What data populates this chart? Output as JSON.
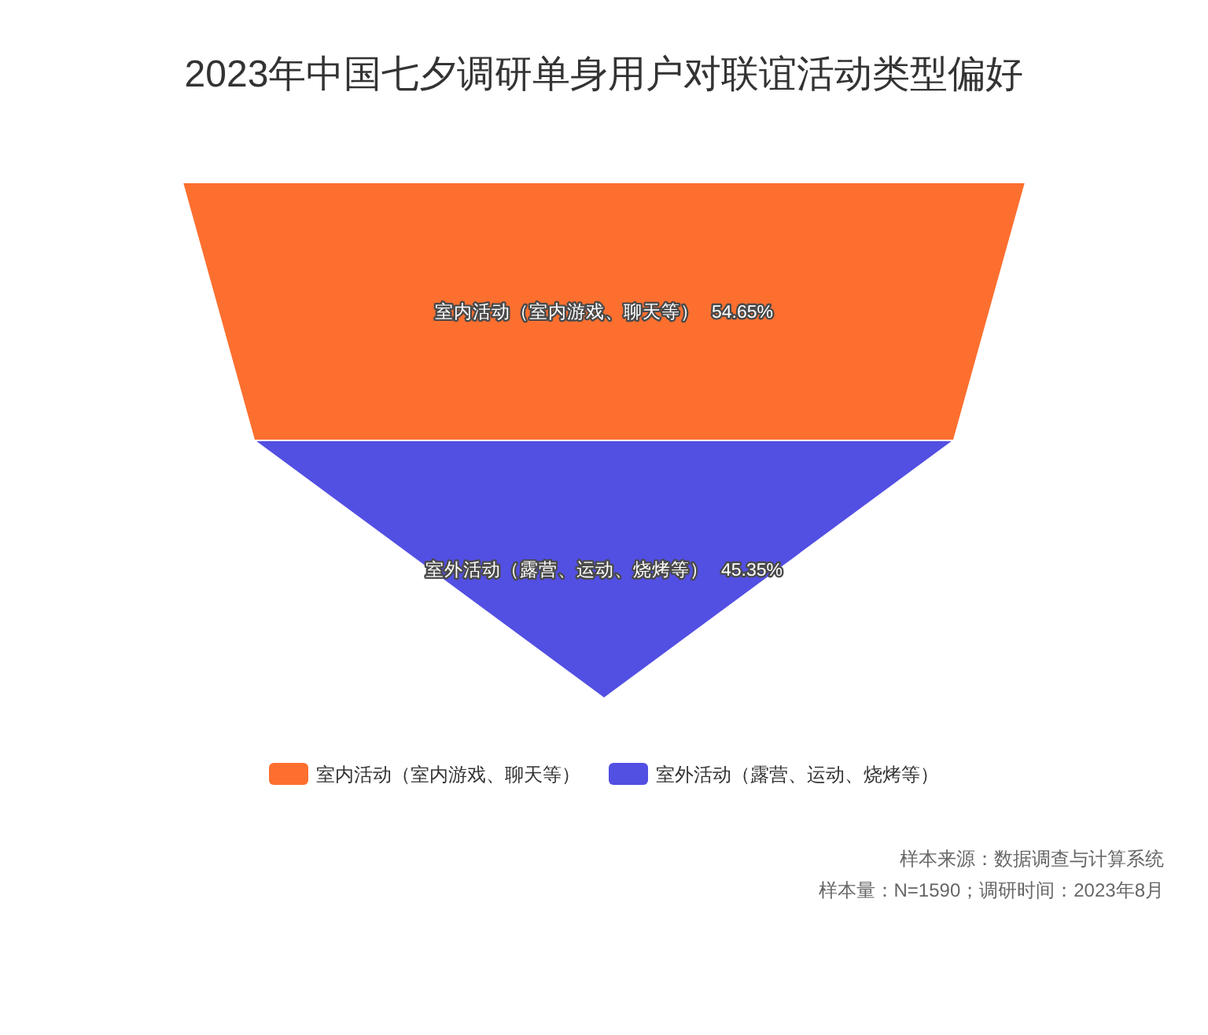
{
  "chart_data": {
    "type": "other",
    "title": "2023年中国七夕调研单身用户对联谊活动类型偏好",
    "series": [
      {
        "name": "室内活动（室内游戏、聊天等）",
        "color": "#fd6f2f",
        "values": [
          54.65
        ],
        "value_labels": [
          "54.65%"
        ]
      },
      {
        "name": "室外活动（露营、运动、烧烤等）",
        "color": "#524fe3",
        "values": [
          45.35
        ],
        "value_labels": [
          "45.35%"
        ]
      }
    ],
    "legend": "bottom",
    "annotations": [
      "样本来源：数据调查与计算系统",
      "样本量：N=1590；调研时间：2023年8月"
    ]
  }
}
